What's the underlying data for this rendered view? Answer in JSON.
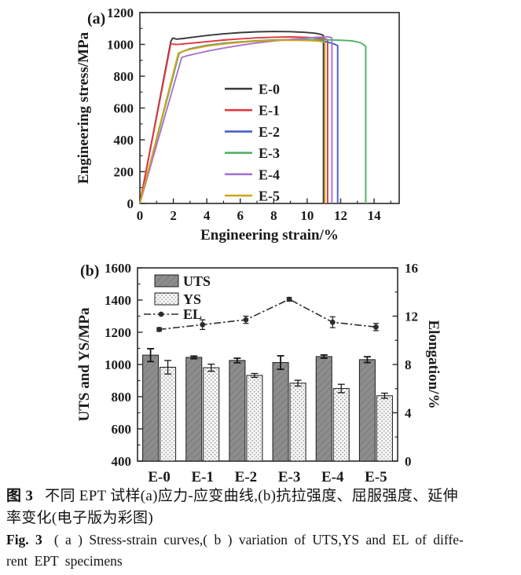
{
  "caption": {
    "zh_prefix": "图 3",
    "zh_line1": "不同 EPT 试样(a)应力-应变曲线,(b)抗拉强度、屈服强度、延伸",
    "zh_line2": "率变化(电子版为彩图)",
    "en_prefix": "Fig. 3",
    "en_line1": "( a ) Stress-strain curves,( b ) variation of UTS,YS and EL of diffe-",
    "en_line2": "rent EPT specimens"
  },
  "colors": {
    "axis": "#2a2a2a",
    "uts_bar": "#8d8d8d",
    "uts_hatch": "#737373",
    "ys_bar": "#f8f8f8",
    "ys_dots": "#a0a0a0",
    "el_line": "#2d2d2d"
  },
  "chart_data": [
    {
      "type": "line",
      "panel_label": "(a)",
      "xlabel": "Engineering strain/%",
      "ylabel": "Engineering stress/MPa",
      "xlim": [
        0,
        15.5
      ],
      "ylim": [
        0,
        1200
      ],
      "xticks": [
        0,
        2,
        4,
        6,
        8,
        10,
        12,
        14
      ],
      "xminor": [
        1,
        3,
        5,
        7,
        9,
        11,
        13,
        15
      ],
      "yticks": [
        0,
        200,
        400,
        600,
        800,
        1000,
        1200
      ],
      "yminor": [
        100,
        300,
        500,
        700,
        900,
        1100
      ],
      "grid": false,
      "legend_position": "inside-center-left",
      "series": [
        {
          "name": "E-0",
          "color": "#3a3a3a",
          "points": [
            [
              0,
              0
            ],
            [
              1.85,
              1020
            ],
            [
              1.97,
              1040
            ],
            [
              2.2,
              1033
            ],
            [
              2.6,
              1037
            ],
            [
              3,
              1043
            ],
            [
              4,
              1056
            ],
            [
              5,
              1066
            ],
            [
              6,
              1074
            ],
            [
              7,
              1079
            ],
            [
              8,
              1081
            ],
            [
              9,
              1080
            ],
            [
              9.8,
              1076
            ],
            [
              10.5,
              1070
            ],
            [
              10.85,
              1062
            ],
            [
              10.97,
              1056
            ],
            [
              10.97,
              0
            ]
          ]
        },
        {
          "name": "E-1",
          "color": "#e0383f",
          "points": [
            [
              0,
              0
            ],
            [
              1.85,
              1005
            ],
            [
              2.05,
              1000
            ],
            [
              2.4,
              1001
            ],
            [
              3,
              1007
            ],
            [
              4,
              1017
            ],
            [
              5,
              1027
            ],
            [
              6,
              1035
            ],
            [
              7,
              1041
            ],
            [
              8,
              1045
            ],
            [
              9,
              1047
            ],
            [
              10,
              1044
            ],
            [
              10.8,
              1038
            ],
            [
              11.1,
              1033
            ],
            [
              11.22,
              1028
            ],
            [
              11.22,
              0
            ]
          ]
        },
        {
          "name": "E-2",
          "color": "#4a5fc0",
          "points": [
            [
              0,
              0
            ],
            [
              2.3,
              940
            ],
            [
              2.6,
              958
            ],
            [
              3,
              973
            ],
            [
              4,
              994
            ],
            [
              5,
              1007
            ],
            [
              6,
              1016
            ],
            [
              7,
              1022
            ],
            [
              8,
              1026
            ],
            [
              9,
              1028
            ],
            [
              10,
              1027
            ],
            [
              10.6,
              1023
            ],
            [
              11.2,
              1015
            ],
            [
              11.6,
              1003
            ],
            [
              11.82,
              992
            ],
            [
              11.82,
              0
            ]
          ]
        },
        {
          "name": "E-3",
          "color": "#4cb266",
          "points": [
            [
              0,
              0
            ],
            [
              2.35,
              945
            ],
            [
              2.7,
              962
            ],
            [
              3,
              971
            ],
            [
              4,
              992
            ],
            [
              5,
              1006
            ],
            [
              6,
              1016
            ],
            [
              7,
              1023
            ],
            [
              8,
              1028
            ],
            [
              9,
              1030
            ],
            [
              10,
              1030
            ],
            [
              11,
              1029
            ],
            [
              12,
              1026
            ],
            [
              12.7,
              1022
            ],
            [
              13.2,
              1010
            ],
            [
              13.42,
              995
            ],
            [
              13.5,
              985
            ],
            [
              13.5,
              0
            ]
          ]
        },
        {
          "name": "E-4",
          "color": "#a873cc",
          "points": [
            [
              0,
              0
            ],
            [
              2.5,
              918
            ],
            [
              2.8,
              928
            ],
            [
              3,
              933
            ],
            [
              4,
              957
            ],
            [
              5,
              977
            ],
            [
              6,
              994
            ],
            [
              7,
              1009
            ],
            [
              8,
              1021
            ],
            [
              9,
              1031
            ],
            [
              10,
              1040
            ],
            [
              10.6,
              1045
            ],
            [
              11.1,
              1047
            ],
            [
              11.35,
              1046
            ],
            [
              11.48,
              1040
            ],
            [
              11.48,
              0
            ]
          ]
        },
        {
          "name": "E-5",
          "color": "#d2a21d",
          "points": [
            [
              0,
              0
            ],
            [
              2.3,
              945
            ],
            [
              2.7,
              960
            ],
            [
              3,
              969
            ],
            [
              4,
              989
            ],
            [
              5,
              1003
            ],
            [
              6,
              1013
            ],
            [
              7,
              1020
            ],
            [
              8,
              1025
            ],
            [
              9,
              1026
            ],
            [
              10,
              1024
            ],
            [
              10.6,
              1021
            ],
            [
              11.0,
              1016
            ],
            [
              11.05,
              1010
            ],
            [
              11.05,
              0
            ]
          ]
        }
      ]
    },
    {
      "type": "bar",
      "panel_label": "(b)",
      "categories": [
        "E-0",
        "E-1",
        "E-2",
        "E-3",
        "E-4",
        "E-5"
      ],
      "left_axis": {
        "label": "UTS and YS/MPa",
        "min": 400,
        "max": 1600,
        "ticks": [
          400,
          600,
          800,
          1000,
          1200,
          1400,
          1600
        ],
        "minor": [
          500,
          700,
          900,
          1100,
          1300,
          1500
        ]
      },
      "right_axis": {
        "label": "Elongation/%",
        "min": 0,
        "max": 16,
        "ticks": [
          0,
          4,
          8,
          12,
          16
        ],
        "minor": [
          2,
          6,
          10,
          14
        ]
      },
      "grid": false,
      "legend_position": "inside-top-left",
      "bar_series": [
        {
          "name": "UTS",
          "style": "dark-hatch",
          "values": [
            1058,
            1044,
            1025,
            1012,
            1049,
            1030
          ],
          "errors": [
            40,
            8,
            14,
            42,
            10,
            18
          ]
        },
        {
          "name": "YS",
          "style": "light-dot",
          "values": [
            983,
            980,
            932,
            884,
            851,
            806
          ],
          "errors": [
            42,
            22,
            12,
            18,
            26,
            16
          ]
        }
      ],
      "line_series": {
        "name": "EL",
        "axis": "right",
        "marker": "circle",
        "values": [
          10.9,
          11.3,
          11.7,
          13.4,
          11.5,
          11.1
        ],
        "errors": [
          0.15,
          0.4,
          0.3,
          0.15,
          0.45,
          0.3
        ]
      }
    }
  ]
}
